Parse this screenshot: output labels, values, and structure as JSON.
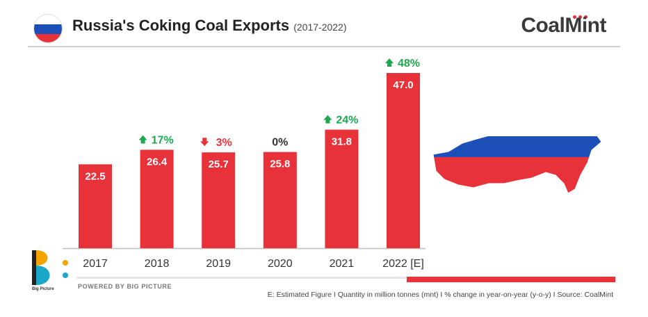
{
  "header": {
    "title": "Russia's Coking Coal Exports",
    "subtitle": "(2017-2022)",
    "logo": "CoalMint"
  },
  "chart_data": {
    "type": "bar",
    "categories": [
      "2017",
      "2018",
      "2019",
      "2020",
      "2021",
      "2022 [E]"
    ],
    "values": [
      22.5,
      26.4,
      25.7,
      25.8,
      31.8,
      47.0
    ],
    "value_labels": [
      "22.5",
      "26.4",
      "25.7",
      "25.8",
      "31.8",
      "47.0"
    ],
    "changes": [
      null,
      {
        "label": "17%",
        "direction": "up"
      },
      {
        "label": "3%",
        "direction": "down"
      },
      {
        "label": "0%",
        "direction": "none"
      },
      {
        "label": "24%",
        "direction": "up"
      },
      {
        "label": "48%",
        "direction": "up"
      }
    ],
    "title": "Russia's Coking Coal Exports",
    "xlabel": "",
    "ylabel": "",
    "ylim": [
      0,
      47
    ],
    "grid": false,
    "bar_color": "#e8323a",
    "up_color": "#1ea84f",
    "down_color": "#e8323a",
    "neutral_color": "#333333"
  },
  "colors": {
    "flag_white": "#ffffff",
    "flag_blue": "#1d4fb8",
    "flag_red": "#e8323a"
  },
  "footer": {
    "bp_caption": "Big Picture",
    "powered": "POWERED BY BIG PICTURE",
    "footnote": "E: Estimated Figure  I  Quantity in million tonnes (mnt)  I  % change in year-on-year (y-o-y)  I  Source: CoalMint"
  }
}
